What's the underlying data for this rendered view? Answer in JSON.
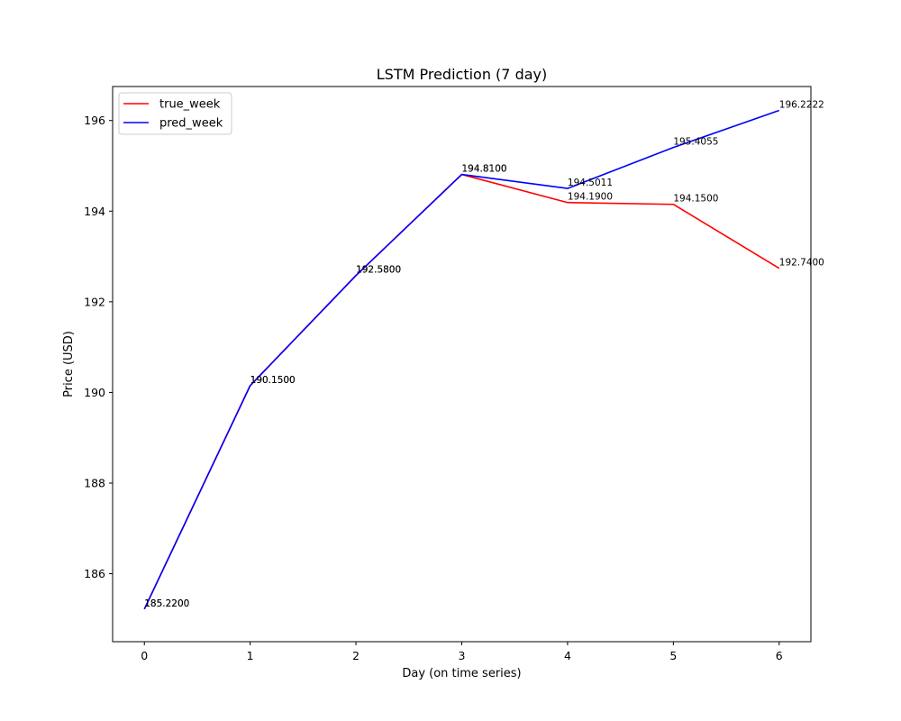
{
  "chart_data": {
    "type": "line",
    "title": "LSTM Prediction (7 day)",
    "xlabel": "Day (on time series)",
    "ylabel": "Price (USD)",
    "x": [
      0,
      1,
      2,
      3,
      4,
      5,
      6
    ],
    "xlim": [
      -0.3,
      6.3
    ],
    "ylim": [
      184.5,
      196.75
    ],
    "x_ticks": [
      "0",
      "1",
      "2",
      "3",
      "4",
      "5",
      "6"
    ],
    "y_ticks": [
      186,
      188,
      190,
      192,
      194,
      196
    ],
    "y_tick_labels": [
      "186",
      "188",
      "190",
      "192",
      "194",
      "196"
    ],
    "grid": false,
    "legend_position": "upper-left",
    "series": [
      {
        "name": "true_week",
        "color": "#ff0000",
        "values": [
          185.22,
          190.15,
          192.58,
          194.81,
          194.19,
          194.15,
          192.74
        ],
        "labels": [
          "185.2200",
          "190.1500",
          "192.5800",
          "194.8100",
          "194.1900",
          "194.1500",
          "192.7400"
        ]
      },
      {
        "name": "pred_week",
        "color": "#0000ff",
        "values": [
          185.22,
          190.15,
          192.58,
          194.81,
          194.5011,
          195.4055,
          196.2222
        ],
        "labels": [
          "185.2200",
          "190.1500",
          "192.5800",
          "194.8100",
          "194.5011",
          "195.4055",
          "196.2222"
        ]
      }
    ]
  }
}
